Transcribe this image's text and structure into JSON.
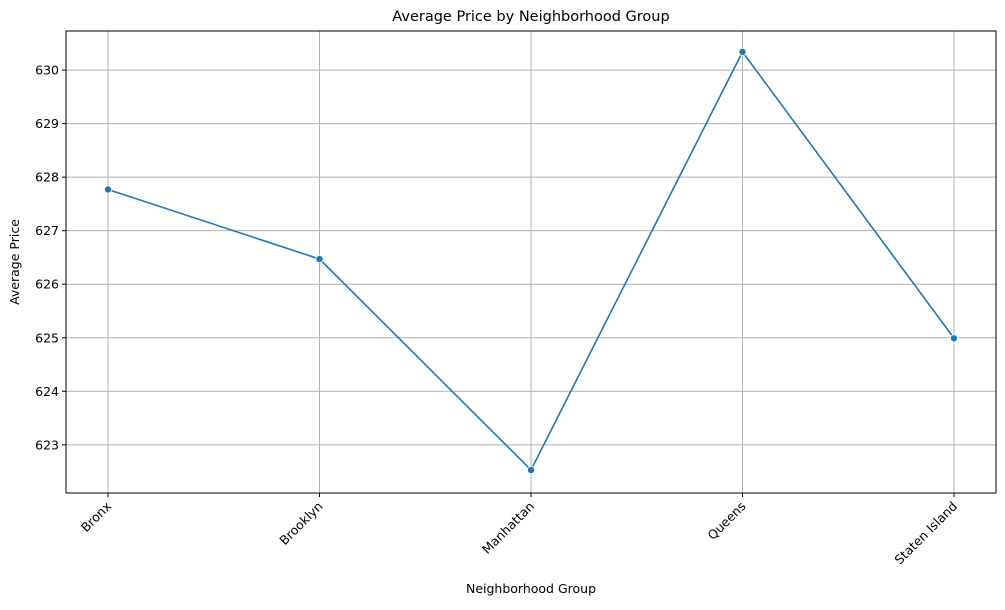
{
  "chart_data": {
    "type": "line",
    "title": "Average Price by Neighborhood Group",
    "xlabel": "Neighborhood Group",
    "ylabel": "Average Price",
    "categories": [
      "Bronx",
      "Brooklyn",
      "Manhattan",
      "Queens",
      "Staten Island"
    ],
    "series": [
      {
        "values": [
          627.77,
          626.47,
          622.53,
          630.34,
          624.99
        ],
        "color": "#1f77b4",
        "marker": "circle"
      }
    ],
    "yticks": [
      623,
      624,
      625,
      626,
      627,
      628,
      629,
      630
    ],
    "ylim": [
      622.1,
      630.73
    ],
    "grid": true,
    "legend": "none",
    "xtick_rotation": "45 degrees"
  }
}
